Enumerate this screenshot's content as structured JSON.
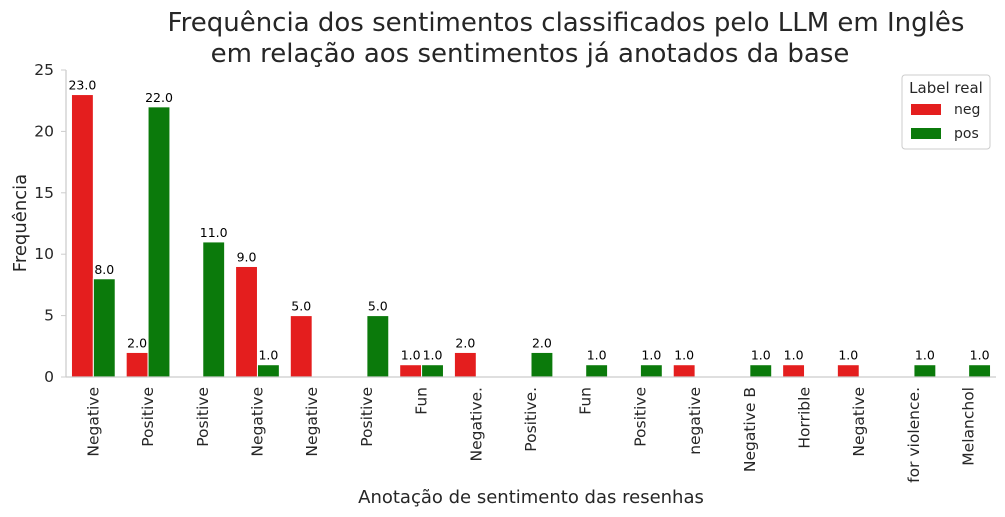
{
  "chart_data": {
    "type": "bar",
    "title_lines": [
      "Frequência dos sentimentos classificados pelo LLM em Inglês",
      "em relação aos sentimentos já anotados da base"
    ],
    "xlabel": "Anotação de sentimento das resenhas",
    "ylabel": "Frequência",
    "ylim": [
      0,
      25
    ],
    "yticks": [
      0,
      5,
      10,
      15,
      20,
      25
    ],
    "grid": false,
    "legend": {
      "title": "Label real",
      "placement": "top-right"
    },
    "categories": [
      "Negative",
      "Positive",
      "Positive",
      "Negative",
      "Negative",
      "Positive",
      "Fun",
      "Negative.",
      "Positive.",
      "Fun",
      "Positive",
      "negative",
      "Negative B",
      "Horrible",
      "Negative",
      "for violence.",
      "Melanchol"
    ],
    "series": [
      {
        "name": "neg",
        "color": "#e41e1e",
        "values": [
          23,
          2,
          null,
          9,
          5,
          null,
          1,
          2,
          null,
          null,
          null,
          1,
          null,
          1,
          1,
          null,
          null
        ]
      },
      {
        "name": "pos",
        "color": "#0b7a0b",
        "values": [
          8,
          22,
          11,
          1,
          null,
          5,
          1,
          null,
          2,
          1,
          1,
          null,
          1,
          null,
          null,
          1,
          1
        ]
      }
    ]
  }
}
